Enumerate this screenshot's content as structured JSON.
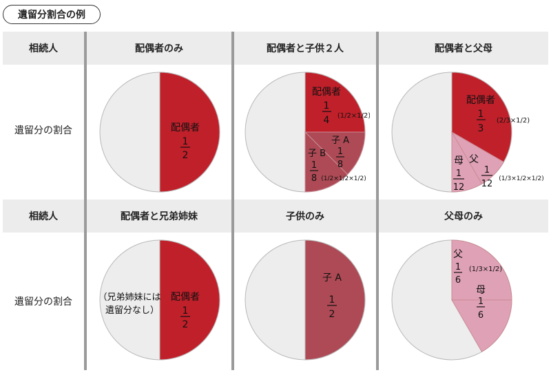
{
  "title": "遺留分割合の例",
  "row_label_heir": "相続人",
  "row_label_share": "遺留分の割合",
  "columns": {
    "r1c1": "配偶者のみ",
    "r1c2": "配偶者と子供２人",
    "r1c3": "配偶者と父母",
    "r2c1": "配偶者と兄弟姉妹",
    "r2c2": "子供のみ",
    "r2c3": "父母のみ"
  },
  "pies": {
    "p1": {
      "spouse": "配偶者",
      "num": "1",
      "den": "2"
    },
    "p2": {
      "spouse": "配偶者",
      "num": "1",
      "den": "4",
      "formula": "(1/2×1/2)",
      "childA": "子 A",
      "childA_num": "1",
      "childA_den": "8",
      "childB": "子 B",
      "childB_num": "1",
      "childB_den": "8",
      "formula_b": "(1/2×1/2×1/2)"
    },
    "p3": {
      "spouse": "配偶者",
      "num": "1",
      "den": "3",
      "formula": "(2/3×1/2)",
      "mother": "母",
      "mother_num": "1",
      "mother_den": "12",
      "father": "父",
      "father_num": "1",
      "father_den": "12",
      "formula_parent": "(1/3×1/2×1/2)"
    },
    "p4": {
      "siblings_line1": "（兄弟姉妹には",
      "siblings_line2": "遺留分なし）",
      "spouse": "配偶者",
      "num": "1",
      "den": "2"
    },
    "p5": {
      "child": "子 A",
      "num": "1",
      "den": "2"
    },
    "p6": {
      "father": "父",
      "father_num": "1",
      "father_den": "6",
      "formula": "(1/3×1/2)",
      "mother": "母",
      "mother_num": "1",
      "mother_den": "6"
    }
  },
  "colors": {
    "spouse": "#c0202a",
    "child": "#ad4a55",
    "parent": "#dfa1b5",
    "remainder": "#ededed",
    "header_bg": "#ececec",
    "separator": "#9a9a9a"
  }
}
